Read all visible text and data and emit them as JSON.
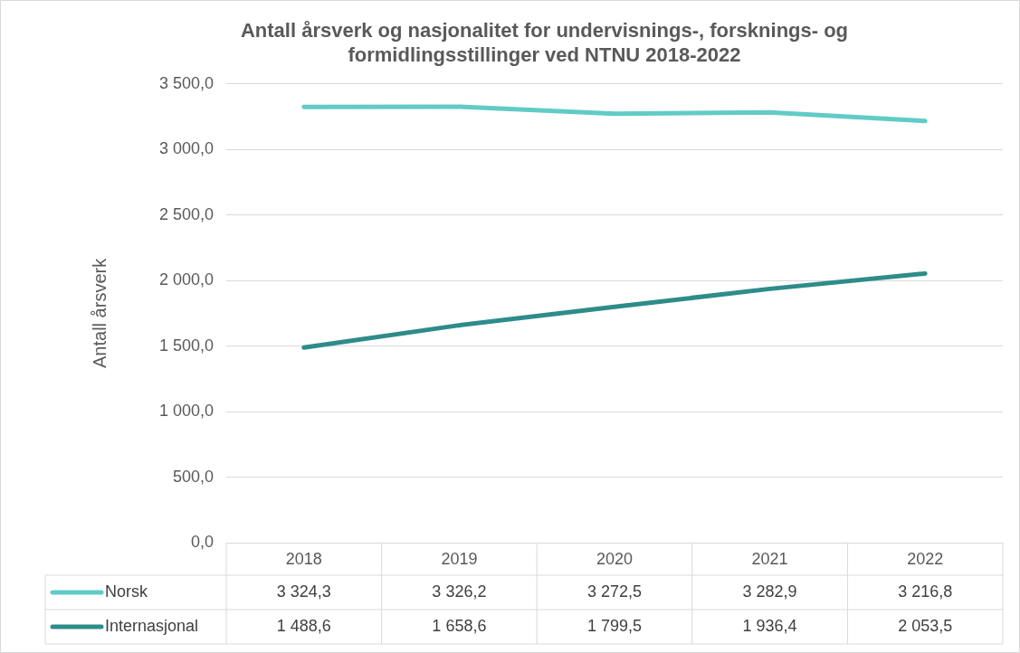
{
  "chart_data": {
    "type": "line",
    "title": "Antall årsverk og nasjonalitet for undervisnings-, forsknings- og formidlingsstillinger ved NTNU 2018-2022",
    "ylabel": "Antall årsverk",
    "categories": [
      "2018",
      "2019",
      "2020",
      "2021",
      "2022"
    ],
    "series": [
      {
        "name": "Norsk",
        "color": "#62cbc6",
        "values": [
          3324.3,
          3326.2,
          3272.5,
          3282.9,
          3216.8
        ],
        "value_labels": [
          "3 324,3",
          "3 326,2",
          "3 272,5",
          "3 282,9",
          "3 216,8"
        ]
      },
      {
        "name": "Internasjonal",
        "color": "#2e8c89",
        "values": [
          1488.6,
          1658.6,
          1799.5,
          1936.4,
          2053.5
        ],
        "value_labels": [
          "1 488,6",
          "1 658,6",
          "1 799,5",
          "1 936,4",
          "2 053,5"
        ]
      }
    ],
    "ylim": [
      0,
      3500
    ],
    "yticks": [
      {
        "value": 0,
        "label": "0,0"
      },
      {
        "value": 500,
        "label": "500,0"
      },
      {
        "value": 1000,
        "label": "1 000,0"
      },
      {
        "value": 1500,
        "label": "1 500,0"
      },
      {
        "value": 2000,
        "label": "2 000,0"
      },
      {
        "value": 2500,
        "label": "2 500,0"
      },
      {
        "value": 3000,
        "label": "3 000,0"
      },
      {
        "value": 3500,
        "label": "3 500,0"
      }
    ],
    "grid": "y",
    "legend": "bottom",
    "marker": "none",
    "line_style": "solid"
  }
}
